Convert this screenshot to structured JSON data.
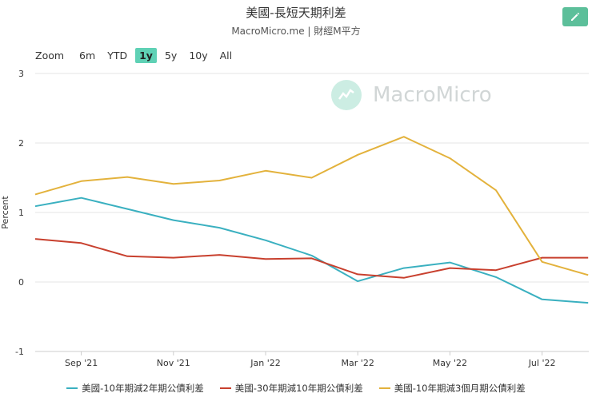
{
  "header": {
    "title": "美國-長短天期利差",
    "subtitle": "MacroMicro.me | 財經M平方"
  },
  "watermark": {
    "text": "MacroMicro"
  },
  "toolbar": {
    "edit_icon": "pencil-icon"
  },
  "zoom": {
    "label": "Zoom",
    "options": [
      "6m",
      "YTD",
      "1y",
      "5y",
      "10y",
      "All"
    ],
    "active": "1y"
  },
  "chart_data": {
    "type": "line",
    "ylabel": "Percent",
    "ylim": [
      -1,
      3
    ],
    "yticks": [
      "3",
      "2",
      "1",
      "0",
      "-1"
    ],
    "xticks": [
      "Sep '21",
      "Nov '21",
      "Jan '22",
      "Mar '22",
      "May '22",
      "Jul '22"
    ],
    "grid": true,
    "legend_position": "bottom",
    "x": [
      "2021-08",
      "2021-09",
      "2021-10",
      "2021-11",
      "2021-12",
      "2022-01",
      "2022-02",
      "2022-03",
      "2022-04",
      "2022-05",
      "2022-06",
      "2022-07",
      "2022-08"
    ],
    "series": [
      {
        "name": "美國-10年期減2年期公債利差",
        "color": "#3ab0c0",
        "values": [
          1.09,
          1.21,
          1.05,
          0.89,
          0.78,
          0.6,
          0.38,
          0.01,
          0.2,
          0.28,
          0.07,
          -0.25,
          -0.3
        ]
      },
      {
        "name": "美國-30年期減10年期公債利差",
        "color": "#c8402e",
        "values": [
          0.62,
          0.56,
          0.37,
          0.35,
          0.39,
          0.33,
          0.34,
          0.11,
          0.06,
          0.2,
          0.17,
          0.35,
          0.35
        ]
      },
      {
        "name": "美國-10年期減3個月期公債利差",
        "color": "#e3b23c",
        "values": [
          1.26,
          1.45,
          1.51,
          1.41,
          1.46,
          1.6,
          1.5,
          1.83,
          2.09,
          1.78,
          1.32,
          0.29,
          0.1
        ]
      }
    ]
  }
}
